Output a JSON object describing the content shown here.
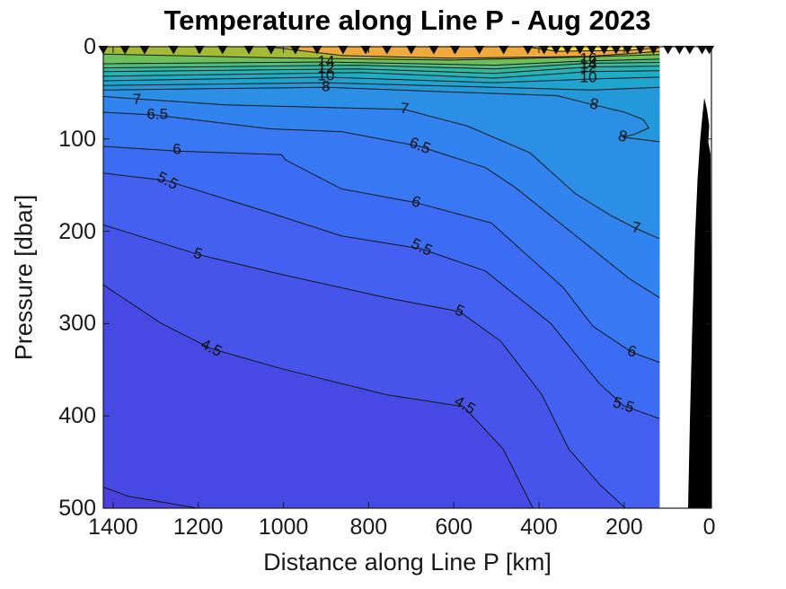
{
  "chart_data": {
    "type": "filled-contour-section",
    "title": "Temperature along Line P - Aug 2023",
    "xlabel": "Distance along Line P [km]",
    "ylabel": "Pressure [dbar]",
    "xlim": [
      -5,
      1423
    ],
    "x_reversed": true,
    "ylim": [
      0,
      500
    ],
    "y_reversed": true,
    "x_ticks": [
      1400,
      1200,
      1000,
      800,
      600,
      400,
      200,
      0
    ],
    "y_ticks": [
      0,
      100,
      200,
      300,
      400,
      500
    ],
    "grid": false,
    "legend": "none",
    "temperature_units": "degC",
    "data_extent_km": [
      117,
      1423
    ],
    "station_distances_km": [
      1423,
      1372,
      1326,
      1258,
      1197,
      1143,
      1081,
      1029,
      972,
      921,
      860,
      807,
      757,
      700,
      647,
      597,
      540,
      483,
      426,
      388,
      360,
      333,
      304,
      276,
      247,
      219,
      192,
      162,
      131,
      97,
      70,
      46,
      17,
      0
    ],
    "colors": {
      "background": "#ffffff",
      "axis": "#1a1a1a",
      "contour_line": "#161616",
      "station_marker": "#0d0d0d",
      "bathymetry": "#000000",
      "base_band": "#4749e4",
      "below_min_band": "#4a41dc"
    },
    "below_min_patch": {
      "pts": [
        [
          1423,
          477
        ],
        [
          1365,
          487
        ],
        [
          1201,
          500
        ],
        [
          1423,
          500
        ]
      ]
    },
    "isotherms": [
      {
        "level": 4,
        "band_above": "#4749e4",
        "pts": [
          [
            1423,
            477
          ],
          [
            1365,
            487
          ],
          [
            1201,
            500
          ]
        ],
        "labels": []
      },
      {
        "level": 4.5,
        "band_above": "#4754ea",
        "pts": [
          [
            1423,
            258
          ],
          [
            1286,
            300
          ],
          [
            1170,
            327
          ],
          [
            1012,
            348
          ],
          [
            758,
            377
          ],
          [
            577,
            390
          ],
          [
            484,
            436
          ],
          [
            414,
            500
          ]
        ],
        "labels": [
          {
            "km": 1170,
            "dbar": 327,
            "rot": 27
          },
          {
            "km": 575,
            "dbar": 389,
            "rot": 30
          }
        ]
      },
      {
        "level": 5,
        "band_above": "#4360f0",
        "pts": [
          [
            1423,
            193
          ],
          [
            1201,
            225
          ],
          [
            1012,
            246
          ],
          [
            758,
            272
          ],
          [
            587,
            287
          ],
          [
            490,
            319
          ],
          [
            393,
            377
          ],
          [
            330,
            436
          ],
          [
            256,
            475
          ],
          [
            197,
            500
          ]
        ],
        "labels": [
          {
            "km": 1201,
            "dbar": 225,
            "rot": 18
          },
          {
            "km": 587,
            "dbar": 287,
            "rot": 22
          }
        ]
      },
      {
        "level": 5.5,
        "band_above": "#3d6cf4",
        "pts": [
          [
            1423,
            137
          ],
          [
            1275,
            145
          ],
          [
            1032,
            180
          ],
          [
            864,
            205
          ],
          [
            676,
            219
          ],
          [
            526,
            243
          ],
          [
            372,
            300
          ],
          [
            258,
            365
          ],
          [
            201,
            389
          ],
          [
            117,
            403
          ]
        ],
        "labels": [
          {
            "km": 1273,
            "dbar": 146,
            "rot": 28
          },
          {
            "km": 676,
            "dbar": 218,
            "rot": 25
          },
          {
            "km": 202,
            "dbar": 389,
            "rot": 18
          }
        ]
      },
      {
        "level": 6,
        "band_above": "#3878f3",
        "pts": [
          [
            1423,
            108
          ],
          [
            1250,
            113
          ],
          [
            1005,
            117
          ],
          [
            994,
            123
          ],
          [
            864,
            154
          ],
          [
            689,
            169
          ],
          [
            512,
            191
          ],
          [
            343,
            261
          ],
          [
            273,
            303
          ],
          [
            182,
            331
          ],
          [
            117,
            342
          ]
        ],
        "labels": [
          {
            "km": 1250,
            "dbar": 112,
            "rot": 0
          },
          {
            "km": 689,
            "dbar": 169,
            "rot": 18
          },
          {
            "km": 182,
            "dbar": 331,
            "rot": 14
          }
        ]
      },
      {
        "level": 6.5,
        "band_above": "#3184f0",
        "pts": [
          [
            1423,
            71
          ],
          [
            1300,
            74
          ],
          [
            1032,
            89
          ],
          [
            864,
            92
          ],
          [
            680,
            108
          ],
          [
            526,
            131
          ],
          [
            457,
            152
          ],
          [
            294,
            212
          ],
          [
            189,
            251
          ],
          [
            117,
            272
          ]
        ],
        "labels": [
          {
            "km": 1296,
            "dbar": 74,
            "rot": 0
          },
          {
            "km": 680,
            "dbar": 108,
            "rot": 22
          }
        ]
      },
      {
        "level": 7,
        "band_above": "#2a8fe5",
        "pts": [
          [
            1423,
            54
          ],
          [
            1138,
            63
          ],
          [
            716,
            68
          ],
          [
            568,
            86
          ],
          [
            421,
            115
          ],
          [
            315,
            159
          ],
          [
            231,
            183
          ],
          [
            172,
            197
          ],
          [
            117,
            208
          ]
        ],
        "labels": [
          {
            "km": 1344,
            "dbar": 58,
            "rot": 0
          },
          {
            "km": 716,
            "dbar": 68,
            "rot": 8
          },
          {
            "km": 172,
            "dbar": 197,
            "rot": 10
          }
        ]
      },
      {
        "level": 8,
        "band_above": "#2399d9",
        "pts": [
          [
            1423,
            47
          ],
          [
            900,
            44
          ],
          [
            611,
            49
          ],
          [
            358,
            53
          ],
          [
            271,
            63
          ],
          [
            199,
            71
          ],
          [
            155,
            79
          ],
          [
            142,
            88
          ],
          [
            176,
            95
          ],
          [
            204,
            98
          ],
          [
            117,
            103
          ]
        ],
        "labels": [
          {
            "km": 900,
            "dbar": 44,
            "rot": 0
          },
          {
            "km": 271,
            "dbar": 63,
            "rot": 12
          },
          {
            "km": 204,
            "dbar": 98,
            "rot": 14
          }
        ]
      },
      {
        "level": 9,
        "band_above": "#1fa3cf",
        "pts": [
          [
            1423,
            42
          ],
          [
            900,
            39
          ],
          [
            505,
            44
          ],
          [
            273,
            47
          ],
          [
            117,
            44
          ]
        ],
        "labels": []
      },
      {
        "level": 10,
        "band_above": "#1eadc6",
        "pts": [
          [
            1423,
            37
          ],
          [
            900,
            33
          ],
          [
            505,
            39
          ],
          [
            277,
            35
          ],
          [
            117,
            33
          ]
        ],
        "labels": [
          {
            "km": 900,
            "dbar": 32,
            "rot": 0
          },
          {
            "km": 284,
            "dbar": 34,
            "rot": 0
          }
        ]
      },
      {
        "level": 11,
        "band_above": "#26b3b3",
        "pts": [
          [
            1423,
            32
          ],
          [
            822,
            28
          ],
          [
            505,
            34
          ],
          [
            284,
            27
          ],
          [
            117,
            26
          ]
        ],
        "labels": []
      },
      {
        "level": 12,
        "band_above": "#34b99e",
        "pts": [
          [
            1423,
            27
          ],
          [
            822,
            24
          ],
          [
            505,
            29
          ],
          [
            284,
            22
          ],
          [
            117,
            21
          ]
        ],
        "labels": [
          {
            "km": 900,
            "dbar": 24,
            "rot": 0
          },
          {
            "km": 284,
            "dbar": 23,
            "rot": 0
          }
        ]
      },
      {
        "level": 13,
        "band_above": "#4bbd84",
        "pts": [
          [
            1423,
            23
          ],
          [
            822,
            20
          ],
          [
            505,
            24
          ],
          [
            284,
            18
          ],
          [
            117,
            17
          ]
        ],
        "labels": []
      },
      {
        "level": 14,
        "band_above": "#6ec05a",
        "pts": [
          [
            1423,
            18.5
          ],
          [
            900,
            16.5
          ],
          [
            505,
            20
          ],
          [
            290,
            15.5
          ],
          [
            117,
            13.5
          ]
        ],
        "labels": [
          {
            "km": 900,
            "dbar": 16.5,
            "rot": 0
          },
          {
            "km": 284,
            "dbar": 19.5,
            "rot": 0
          }
        ]
      },
      {
        "level": 15,
        "band_above": "#a6bb35",
        "pts": [
          [
            1423,
            8
          ],
          [
            1032,
            12
          ],
          [
            611,
            14.5
          ],
          [
            315,
            11.5
          ],
          [
            117,
            8.5
          ]
        ],
        "labels": []
      },
      {
        "level": 16,
        "band_above": "#efa93c",
        "pts": [
          [
            1037,
            0
          ],
          [
            864,
            9.5
          ],
          [
            611,
            12.5
          ],
          [
            284,
            10.5
          ],
          [
            189,
            7.5
          ],
          [
            117,
            5
          ]
        ],
        "labels": [
          {
            "km": 284,
            "dbar": 13.5,
            "rot": 0
          }
        ]
      },
      {
        "level": 17,
        "band_above": "#f9e13d",
        "pts": [
          [
            431,
            0
          ],
          [
            358,
            5
          ],
          [
            189,
            4
          ],
          [
            117,
            1
          ]
        ],
        "labels": []
      }
    ],
    "bathymetry": [
      [
        11.9,
        55.4
      ],
      [
        5.6,
        68.1
      ],
      [
        0.3,
        85.6
      ],
      [
        2.4,
        103.1
      ],
      [
        -2.9,
        116.7
      ],
      [
        -3.9,
        241.2
      ],
      [
        -3.9,
        500
      ],
      [
        49.9,
        500
      ],
      [
        45.6,
        406.6
      ],
      [
        40.4,
        309.3
      ],
      [
        34,
        212.1
      ],
      [
        27.7,
        144
      ],
      [
        21.4,
        100.2
      ],
      [
        16.1,
        73.9
      ]
    ]
  }
}
